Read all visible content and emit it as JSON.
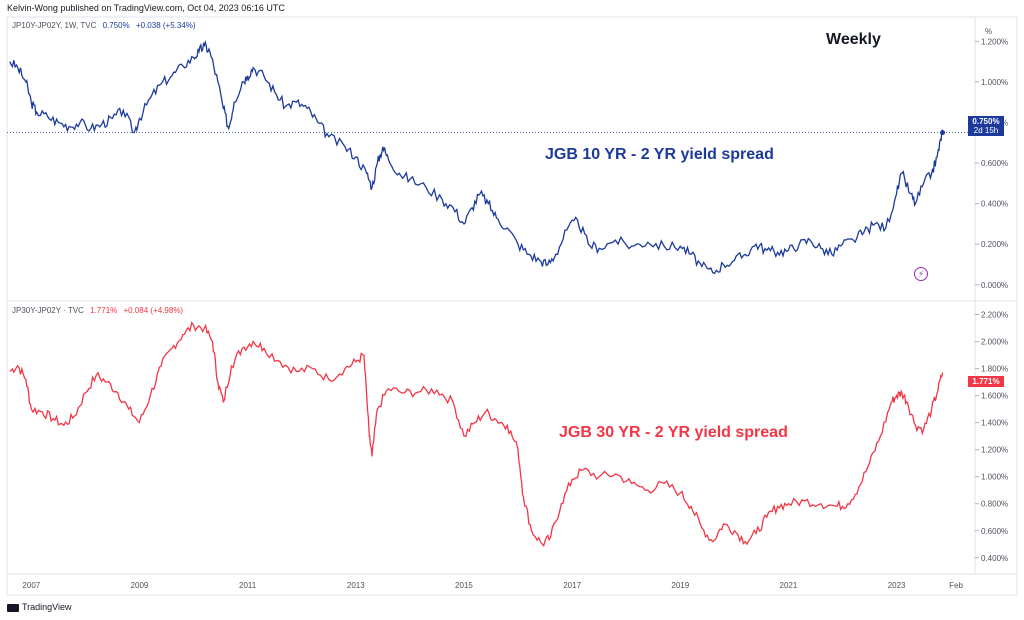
{
  "publisher_line": "Kelvin-Wong published on TradingView.com, Oct 04, 2023 06:16 UTC",
  "footer": {
    "brand": "TradingView"
  },
  "annotations": {
    "weekly": "Weekly",
    "top_title": "JGB 10 YR - 2 YR yield spread",
    "bottom_title": "JGB 30 YR - 2 YR yield spread"
  },
  "chart_data": [
    {
      "type": "line",
      "legend": {
        "symbol": "JP10Y-JP02Y, 1W, TVC",
        "value": "0.750%",
        "change": "+0.038 (+5.34%)"
      },
      "title": "JGB 10 YR - 2 YR yield spread",
      "color": "#1c3a9c",
      "ylim": [
        -0.08,
        1.32
      ],
      "y_ticks": [
        "1.200%",
        "1.000%",
        "0.800%",
        "0.600%",
        "0.400%",
        "0.200%",
        "0.000%"
      ],
      "y_tick_values": [
        1.2,
        1.0,
        0.8,
        0.6,
        0.4,
        0.2,
        0.0
      ],
      "axis_unit": "%",
      "last_value_tag": [
        "0.750%",
        "2d 15h"
      ],
      "last_value": 0.75,
      "series": [
        {
          "points": [
            [
              2006.6,
              1.1
            ],
            [
              2006.75,
              1.07
            ],
            [
              2006.9,
              1.0
            ],
            [
              2007.0,
              0.9
            ],
            [
              2007.1,
              0.85
            ],
            [
              2007.3,
              0.83
            ],
            [
              2007.5,
              0.8
            ],
            [
              2007.7,
              0.78
            ],
            [
              2007.9,
              0.8
            ],
            [
              2008.1,
              0.77
            ],
            [
              2008.3,
              0.79
            ],
            [
              2008.5,
              0.82
            ],
            [
              2008.7,
              0.86
            ],
            [
              2008.9,
              0.75
            ],
            [
              2009.0,
              0.82
            ],
            [
              2009.2,
              0.92
            ],
            [
              2009.4,
              0.99
            ],
            [
              2009.6,
              1.03
            ],
            [
              2009.8,
              1.08
            ],
            [
              2010.0,
              1.12
            ],
            [
              2010.1,
              1.15
            ],
            [
              2010.2,
              1.18
            ],
            [
              2010.3,
              1.15
            ],
            [
              2010.45,
              1.0
            ],
            [
              2010.55,
              0.87
            ],
            [
              2010.65,
              0.77
            ],
            [
              2010.75,
              0.9
            ],
            [
              2010.9,
              1.0
            ],
            [
              2011.0,
              1.03
            ],
            [
              2011.1,
              1.07
            ],
            [
              2011.3,
              1.03
            ],
            [
              2011.5,
              0.95
            ],
            [
              2011.7,
              0.88
            ],
            [
              2011.9,
              0.9
            ],
            [
              2012.1,
              0.87
            ],
            [
              2012.3,
              0.8
            ],
            [
              2012.5,
              0.73
            ],
            [
              2012.8,
              0.68
            ],
            [
              2013.0,
              0.63
            ],
            [
              2013.2,
              0.55
            ],
            [
              2013.3,
              0.48
            ],
            [
              2013.4,
              0.6
            ],
            [
              2013.5,
              0.68
            ],
            [
              2013.6,
              0.62
            ],
            [
              2013.8,
              0.55
            ],
            [
              2014.0,
              0.52
            ],
            [
              2014.3,
              0.48
            ],
            [
              2014.6,
              0.42
            ],
            [
              2014.8,
              0.38
            ],
            [
              2015.0,
              0.3
            ],
            [
              2015.15,
              0.38
            ],
            [
              2015.3,
              0.45
            ],
            [
              2015.45,
              0.4
            ],
            [
              2015.6,
              0.33
            ],
            [
              2015.8,
              0.28
            ],
            [
              2016.0,
              0.2
            ],
            [
              2016.2,
              0.15
            ],
            [
              2016.4,
              0.12
            ],
            [
              2016.55,
              0.1
            ],
            [
              2016.7,
              0.15
            ],
            [
              2016.9,
              0.27
            ],
            [
              2017.1,
              0.32
            ],
            [
              2017.3,
              0.2
            ],
            [
              2017.5,
              0.18
            ],
            [
              2017.8,
              0.22
            ],
            [
              2018.1,
              0.19
            ],
            [
              2018.4,
              0.21
            ],
            [
              2018.7,
              0.19
            ],
            [
              2019.0,
              0.19
            ],
            [
              2019.2,
              0.15
            ],
            [
              2019.4,
              0.09
            ],
            [
              2019.6,
              0.06
            ],
            [
              2019.8,
              0.1
            ],
            [
              2020.0,
              0.12
            ],
            [
              2020.2,
              0.15
            ],
            [
              2020.4,
              0.2
            ],
            [
              2020.6,
              0.17
            ],
            [
              2020.8,
              0.16
            ],
            [
              2021.0,
              0.17
            ],
            [
              2021.2,
              0.2
            ],
            [
              2021.4,
              0.22
            ],
            [
              2021.6,
              0.18
            ],
            [
              2021.8,
              0.15
            ],
            [
              2022.0,
              0.2
            ],
            [
              2022.2,
              0.22
            ],
            [
              2022.4,
              0.26
            ],
            [
              2022.6,
              0.3
            ],
            [
              2022.8,
              0.28
            ],
            [
              2023.0,
              0.45
            ],
            [
              2023.1,
              0.55
            ],
            [
              2023.25,
              0.45
            ],
            [
              2023.35,
              0.4
            ],
            [
              2023.5,
              0.5
            ],
            [
              2023.65,
              0.55
            ],
            [
              2023.75,
              0.63
            ],
            [
              2023.82,
              0.72
            ],
            [
              2023.85,
              0.75
            ]
          ]
        }
      ],
      "x_ticks": [
        "2007",
        "2009",
        "2011",
        "2013",
        "2015",
        "2017",
        "2019",
        "2021",
        "2023",
        "Feb"
      ],
      "x_tick_values": [
        2007,
        2009,
        2011,
        2013,
        2015,
        2017,
        2019,
        2021,
        2023,
        2024.1
      ]
    },
    {
      "type": "line",
      "legend": {
        "symbol": "JP30Y-JP02Y · TVC",
        "value": "1.771%",
        "change": "+0.084 (+4.98%)"
      },
      "title": "JGB 30 YR - 2 YR yield spread",
      "color": "#f23645",
      "ylim": [
        0.28,
        2.3
      ],
      "y_ticks": [
        "2.200%",
        "2.000%",
        "1.800%",
        "1.600%",
        "1.400%",
        "1.200%",
        "1.000%",
        "0.800%",
        "0.600%",
        "0.400%"
      ],
      "y_tick_values": [
        2.2,
        2.0,
        1.8,
        1.6,
        1.4,
        1.2,
        1.0,
        0.8,
        0.6,
        0.4
      ],
      "last_value_tag": [
        "1.771%"
      ],
      "last_value": 1.771,
      "series": [
        {
          "points": [
            [
              2006.6,
              1.78
            ],
            [
              2006.75,
              1.82
            ],
            [
              2006.9,
              1.72
            ],
            [
              2007.0,
              1.5
            ],
            [
              2007.2,
              1.48
            ],
            [
              2007.4,
              1.43
            ],
            [
              2007.6,
              1.38
            ],
            [
              2007.8,
              1.45
            ],
            [
              2008.0,
              1.62
            ],
            [
              2008.2,
              1.75
            ],
            [
              2008.4,
              1.7
            ],
            [
              2008.6,
              1.62
            ],
            [
              2008.8,
              1.5
            ],
            [
              2009.0,
              1.4
            ],
            [
              2009.2,
              1.6
            ],
            [
              2009.4,
              1.82
            ],
            [
              2009.6,
              1.95
            ],
            [
              2009.8,
              2.05
            ],
            [
              2010.0,
              2.12
            ],
            [
              2010.2,
              2.1
            ],
            [
              2010.35,
              2.0
            ],
            [
              2010.45,
              1.7
            ],
            [
              2010.55,
              1.55
            ],
            [
              2010.7,
              1.82
            ],
            [
              2010.9,
              1.95
            ],
            [
              2011.1,
              2.0
            ],
            [
              2011.3,
              1.95
            ],
            [
              2011.6,
              1.85
            ],
            [
              2011.9,
              1.78
            ],
            [
              2012.2,
              1.8
            ],
            [
              2012.5,
              1.72
            ],
            [
              2012.8,
              1.8
            ],
            [
              2013.0,
              1.85
            ],
            [
              2013.15,
              1.9
            ],
            [
              2013.25,
              1.3
            ],
            [
              2013.3,
              1.15
            ],
            [
              2013.4,
              1.5
            ],
            [
              2013.6,
              1.65
            ],
            [
              2013.9,
              1.62
            ],
            [
              2014.2,
              1.63
            ],
            [
              2014.5,
              1.64
            ],
            [
              2014.8,
              1.55
            ],
            [
              2015.0,
              1.3
            ],
            [
              2015.2,
              1.4
            ],
            [
              2015.4,
              1.48
            ],
            [
              2015.6,
              1.42
            ],
            [
              2015.8,
              1.38
            ],
            [
              2016.0,
              1.2
            ],
            [
              2016.1,
              0.85
            ],
            [
              2016.25,
              0.6
            ],
            [
              2016.45,
              0.5
            ],
            [
              2016.6,
              0.55
            ],
            [
              2016.8,
              0.8
            ],
            [
              2017.0,
              0.98
            ],
            [
              2017.2,
              1.05
            ],
            [
              2017.5,
              1.0
            ],
            [
              2017.8,
              1.02
            ],
            [
              2018.1,
              0.95
            ],
            [
              2018.4,
              0.9
            ],
            [
              2018.7,
              0.95
            ],
            [
              2019.0,
              0.88
            ],
            [
              2019.2,
              0.78
            ],
            [
              2019.4,
              0.62
            ],
            [
              2019.6,
              0.52
            ],
            [
              2019.8,
              0.65
            ],
            [
              2020.0,
              0.6
            ],
            [
              2020.2,
              0.52
            ],
            [
              2020.4,
              0.58
            ],
            [
              2020.6,
              0.7
            ],
            [
              2020.8,
              0.78
            ],
            [
              2021.0,
              0.8
            ],
            [
              2021.3,
              0.82
            ],
            [
              2021.6,
              0.8
            ],
            [
              2021.9,
              0.78
            ],
            [
              2022.1,
              0.8
            ],
            [
              2022.3,
              0.92
            ],
            [
              2022.5,
              1.1
            ],
            [
              2022.7,
              1.3
            ],
            [
              2022.9,
              1.55
            ],
            [
              2023.0,
              1.6
            ],
            [
              2023.1,
              1.62
            ],
            [
              2023.2,
              1.55
            ],
            [
              2023.35,
              1.38
            ],
            [
              2023.5,
              1.35
            ],
            [
              2023.65,
              1.5
            ],
            [
              2023.75,
              1.62
            ],
            [
              2023.85,
              1.771
            ]
          ]
        }
      ],
      "x_ticks": [
        "2007",
        "2009",
        "2011",
        "2013",
        "2015",
        "2017",
        "2019",
        "2021",
        "2023",
        "Feb"
      ],
      "x_tick_values": [
        2007,
        2009,
        2011,
        2013,
        2015,
        2017,
        2019,
        2021,
        2023,
        2024.1
      ]
    }
  ]
}
